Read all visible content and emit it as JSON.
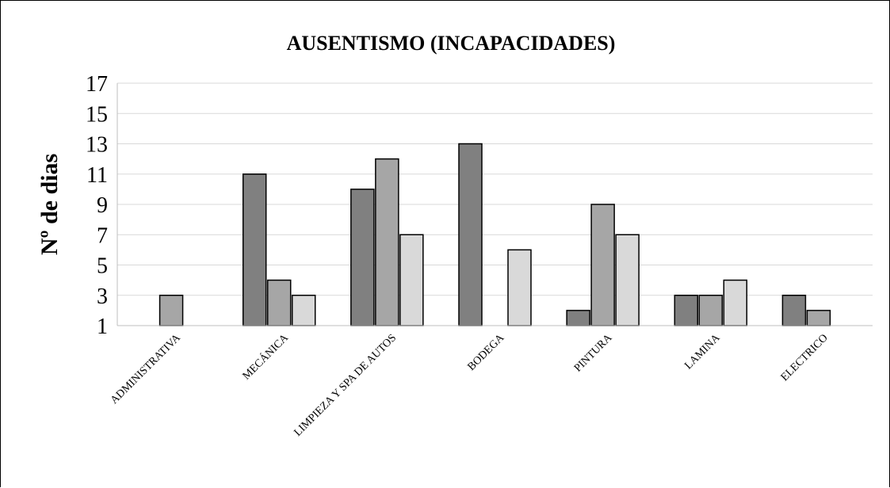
{
  "chart_data": {
    "type": "bar",
    "title": "AUSENTISMO (INCAPACIDADES)",
    "xlabel": "",
    "ylabel": "Nº de dias",
    "ylim": [
      1,
      17
    ],
    "yticks": [
      1,
      3,
      5,
      7,
      9,
      11,
      13,
      15,
      17
    ],
    "grid": true,
    "legend": "none",
    "categories": [
      "ADMINISTRATIVA",
      "MECÁNICA",
      "LIMPIEZA Y SPA DE AUTOS",
      "BODEGA",
      "PINTURA",
      "LAMINA",
      "ELECTRICO"
    ],
    "series": [
      {
        "color": "#808080",
        "values": [
          null,
          11,
          10,
          13,
          2,
          3,
          3
        ]
      },
      {
        "color": "#a6a6a6",
        "values": [
          3,
          4,
          12,
          null,
          9,
          3,
          2
        ]
      },
      {
        "color": "#d9d9d9",
        "values": [
          null,
          3,
          7,
          6,
          7,
          4,
          null
        ]
      }
    ]
  }
}
